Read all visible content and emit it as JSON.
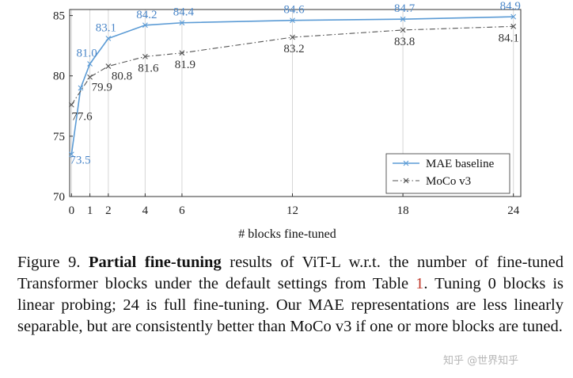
{
  "chart_data": {
    "type": "line",
    "xlabel": "# blocks fine-tuned",
    "ylabel": "",
    "x_ticks": [
      0,
      1,
      2,
      4,
      6,
      12,
      18,
      24
    ],
    "y_ticks": [
      70,
      75,
      80,
      85
    ],
    "xlim": [
      -0.1,
      24.4
    ],
    "ylim": [
      70,
      85.5
    ],
    "grid": "vertical",
    "legend": "bottom-right",
    "series": [
      {
        "name": "MAE baseline",
        "color": "#5b9bd5",
        "style": "solid",
        "marker": "x",
        "x": [
          0,
          0.5,
          1,
          2,
          4,
          6,
          12,
          18,
          24
        ],
        "values": [
          73.5,
          79.0,
          81.0,
          83.1,
          84.2,
          84.4,
          84.6,
          84.7,
          84.9
        ],
        "labels": [
          "73.5",
          "",
          "81.0",
          "83.1",
          "84.2",
          "84.4",
          "84.6",
          "84.7",
          "84.9"
        ]
      },
      {
        "name": "MoCo v3",
        "color": "#555555",
        "style": "dash-dot",
        "marker": "x",
        "x": [
          0,
          1,
          2,
          4,
          6,
          12,
          18,
          24
        ],
        "values": [
          77.6,
          79.9,
          80.8,
          81.6,
          81.9,
          83.2,
          83.8,
          84.1
        ],
        "labels": [
          "77.6",
          "79.9",
          "80.8",
          "81.6",
          "81.9",
          "83.2",
          "83.8",
          "84.1"
        ]
      }
    ]
  },
  "caption": {
    "figure_label": "Figure 9.",
    "bold_phrase": "Partial fine-tuning",
    "text_before_ref": "results of ViT-L w.r.t. the number of fine-tuned Transformer blocks under the default settings from Table",
    "ref": "1",
    "text_after_ref": ". Tuning 0 blocks is linear probing; 24 is full fine-tuning. Our MAE representations are less linearly separable, but are consistently better than MoCo v3 if one or more blocks are tuned."
  },
  "watermark": "知乎 @世界知乎"
}
